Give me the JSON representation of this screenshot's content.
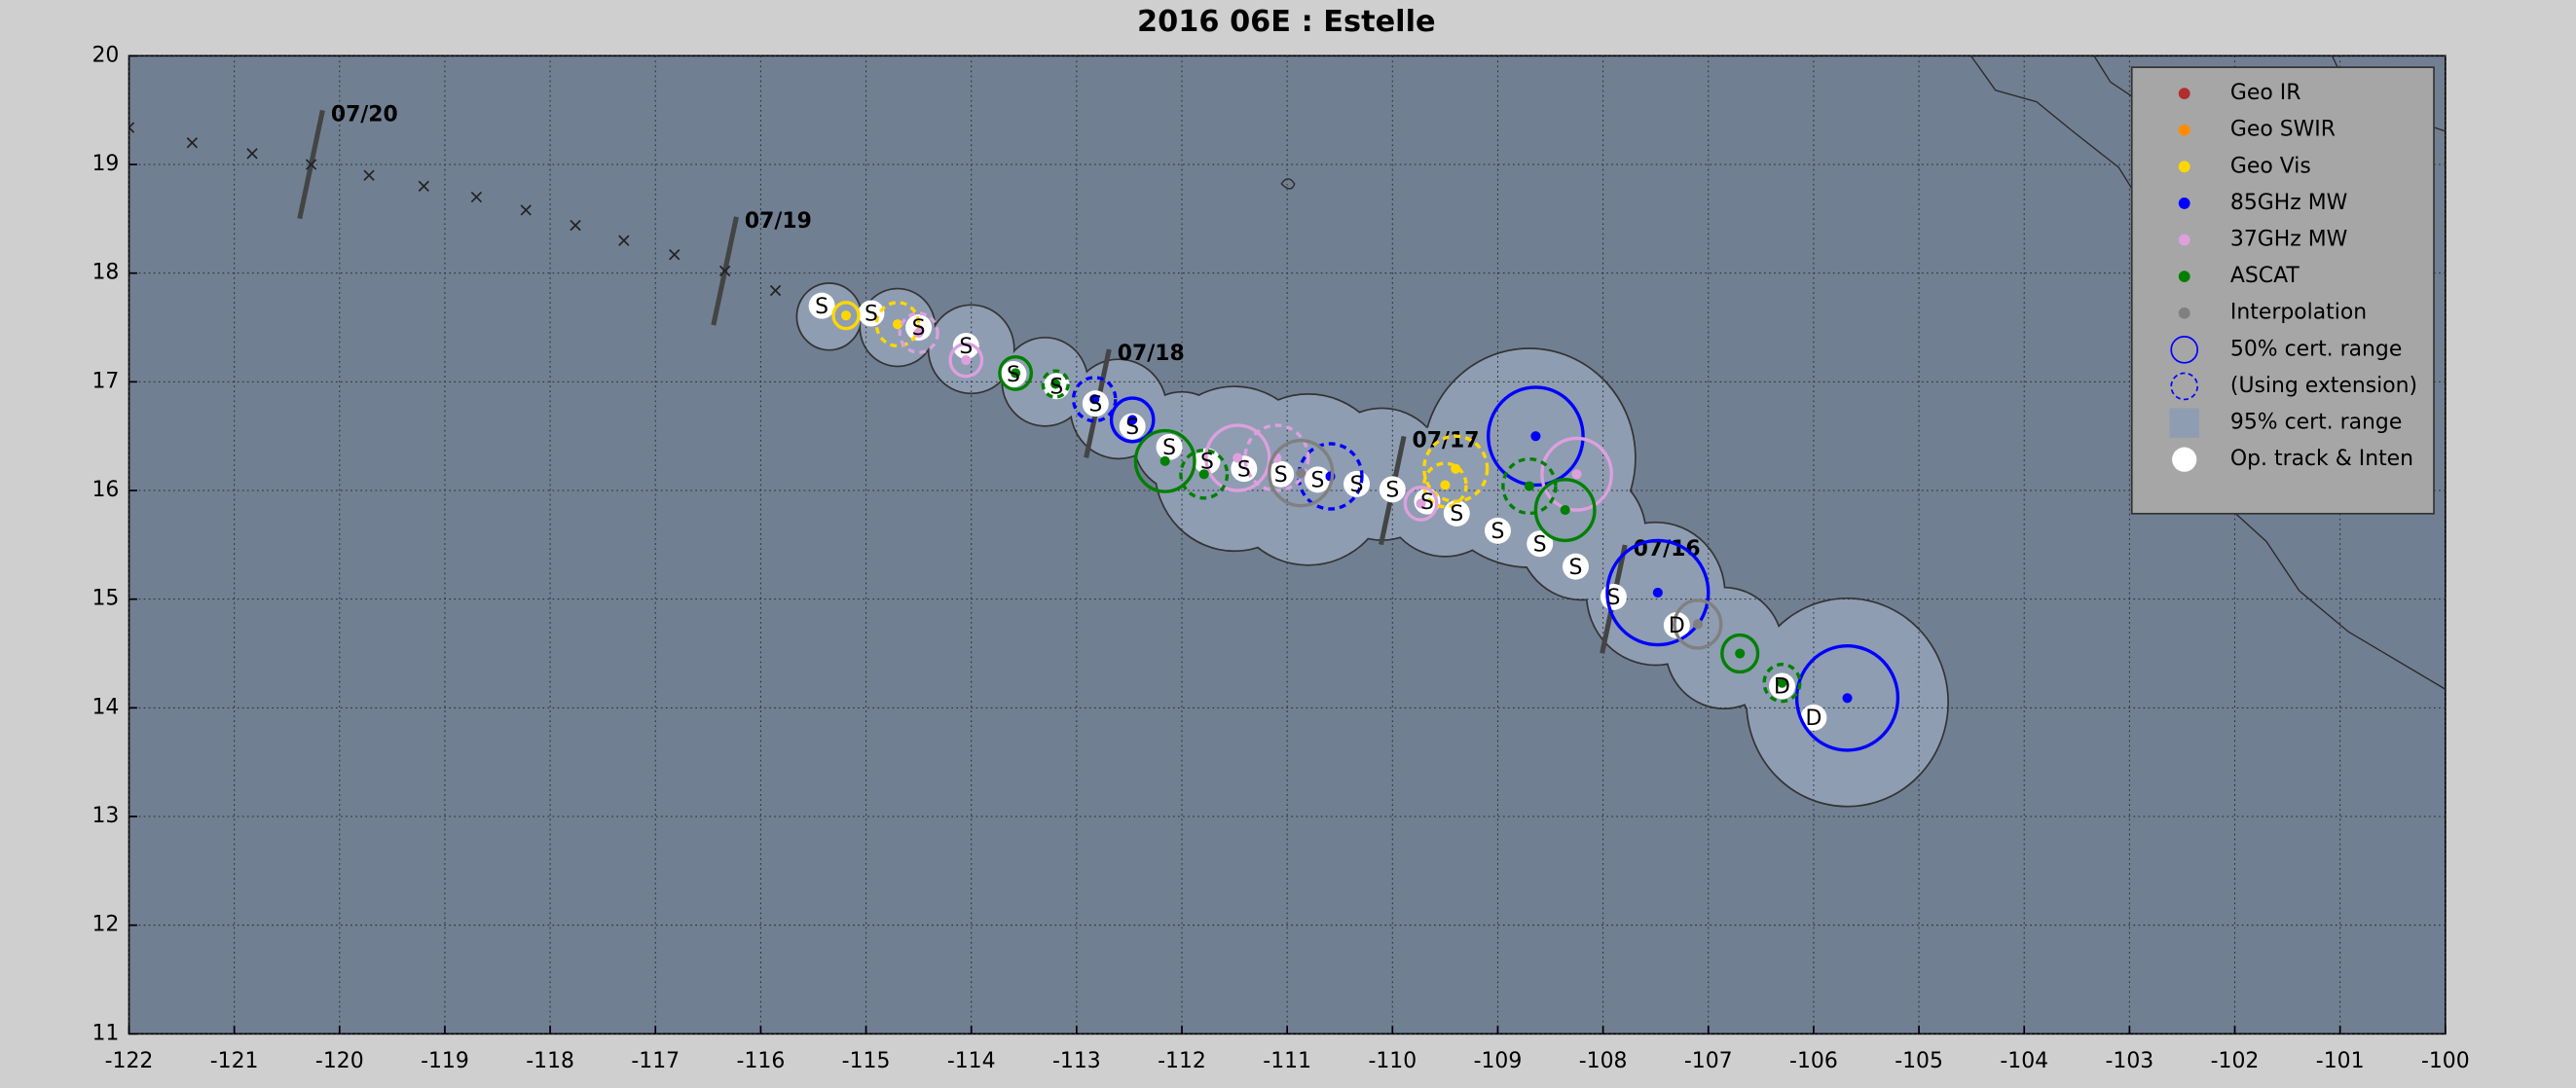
{
  "chart_data": {
    "type": "track",
    "title": "2016  06E :  Estelle",
    "xlim": [
      -122,
      -100
    ],
    "ylim": [
      11,
      20
    ],
    "xticks": [
      -122,
      -121,
      -120,
      -119,
      -118,
      -117,
      -116,
      -115,
      -114,
      -113,
      -112,
      -111,
      -110,
      -109,
      -108,
      -107,
      -106,
      -105,
      -104,
      -103,
      -102,
      -101,
      -100
    ],
    "yticks": [
      11,
      12,
      13,
      14,
      15,
      16,
      17,
      18,
      19,
      20
    ],
    "grid": true,
    "legend_loc": "upper right",
    "series": [
      {
        "name": "Geo IR",
        "color": "#b22d2d",
        "x": [],
        "values": [],
        "radius": [],
        "dashed": []
      },
      {
        "name": "Geo SWIR",
        "color": "#ff8c00",
        "x": [],
        "values": [],
        "radius": [],
        "dashed": []
      },
      {
        "name": "Geo Vis",
        "color": "#ffd700",
        "x": [
          -115.19,
          -114.7,
          -109.4,
          -109.5
        ],
        "values": [
          17.61,
          17.53,
          16.2,
          16.05
        ],
        "radius": [
          0.12,
          0.2,
          0.3,
          0.2
        ],
        "dashed": [
          false,
          true,
          true,
          true
        ]
      },
      {
        "name": "85GHz MW",
        "color": "#0000ff",
        "x": [
          -112.83,
          -112.47,
          -110.59,
          -108.64,
          -107.48,
          -105.68
        ],
        "values": [
          16.84,
          16.65,
          16.13,
          16.5,
          15.06,
          14.09
        ],
        "radius": [
          0.2,
          0.2,
          0.3,
          0.45,
          0.48,
          0.48
        ],
        "dashed": [
          true,
          false,
          true,
          false,
          false,
          false
        ]
      },
      {
        "name": "37GHz MW",
        "color": "#dda0dd",
        "x": [
          -114.5,
          -114.05,
          -111.47,
          -111.1,
          -109.73,
          -108.25
        ],
        "values": [
          17.45,
          17.2,
          16.3,
          16.3,
          15.88,
          16.15
        ],
        "radius": [
          0.18,
          0.15,
          0.3,
          0.3,
          0.15,
          0.33
        ],
        "dashed": [
          true,
          false,
          false,
          true,
          false,
          false
        ]
      },
      {
        "name": "ASCAT",
        "color": "#008000",
        "x": [
          -113.58,
          -113.2,
          -112.16,
          -111.79,
          -108.7,
          -108.36,
          -106.7,
          -106.3
        ],
        "values": [
          17.08,
          16.98,
          16.27,
          16.15,
          16.04,
          15.82,
          14.5,
          14.23
        ],
        "radius": [
          0.15,
          0.12,
          0.28,
          0.22,
          0.25,
          0.28,
          0.17,
          0.17
        ],
        "dashed": [
          false,
          true,
          false,
          true,
          true,
          false,
          false,
          true
        ]
      },
      {
        "name": "Interpolation",
        "color": "#808080",
        "x": [
          -110.87,
          -107.1
        ],
        "values": [
          16.16,
          14.77
        ],
        "radius": [
          0.3,
          0.22
        ],
        "dashed": [
          false,
          false
        ]
      }
    ],
    "cert_range": {
      "name": "50% cert. range",
      "extension_name": "(Using extension)",
      "color": "#0000ff"
    },
    "cert95": {
      "name": "95% cert. range",
      "color": "#8e9db2",
      "x": [
        -115.35,
        -114.7,
        -114.0,
        -113.3,
        -112.6,
        -112.0,
        -111.5,
        -110.8,
        -110.1,
        -109.5,
        -108.7,
        -108.2,
        -107.5,
        -106.85,
        -106.2,
        -105.68
      ],
      "values": [
        17.6,
        17.5,
        17.3,
        17.0,
        16.75,
        16.45,
        16.2,
        16.1,
        16.15,
        16.0,
        16.3,
        15.6,
        15.05,
        14.55,
        14.25,
        14.05
      ],
      "radius": [
        0.3,
        0.35,
        0.4,
        0.4,
        0.45,
        0.45,
        0.75,
        0.78,
        0.6,
        0.6,
        1.0,
        0.6,
        0.65,
        0.55,
        0.5,
        0.95
      ]
    },
    "track": {
      "name": "Op. track & Inten",
      "x": [
        -115.42,
        -114.95,
        -114.5,
        -114.05,
        -113.6,
        -113.19,
        -112.82,
        -112.47,
        -112.12,
        -111.76,
        -111.41,
        -111.06,
        -110.71,
        -110.34,
        -110.0,
        -109.67,
        -109.39,
        -109.0,
        -108.6,
        -108.26,
        -107.9,
        -107.3,
        -106.3,
        -106.0
      ],
      "values": [
        17.7,
        17.63,
        17.5,
        17.33,
        17.07,
        16.96,
        16.8,
        16.59,
        16.4,
        16.27,
        16.2,
        16.15,
        16.1,
        16.06,
        16.01,
        15.9,
        15.79,
        15.63,
        15.51,
        15.3,
        15.02,
        14.76,
        14.2,
        13.91
      ],
      "labels": [
        "S",
        "S",
        "S",
        "S",
        "S",
        "S",
        "S",
        "S",
        "S",
        "S",
        "S",
        "S",
        "S",
        "S",
        "S",
        "S",
        "S",
        "S",
        "S",
        "S",
        "S",
        "D",
        "D",
        "D"
      ]
    },
    "past_track": {
      "x": [
        -122.0,
        -121.4,
        -120.83,
        -120.27,
        -119.72,
        -119.2,
        -118.7,
        -118.23,
        -117.76,
        -117.3,
        -116.82,
        -116.34,
        -115.86
      ],
      "values": [
        19.34,
        19.2,
        19.1,
        19.0,
        18.9,
        18.8,
        18.7,
        18.58,
        18.44,
        18.3,
        18.17,
        18.02,
        17.84
      ]
    },
    "dates": {
      "labels": [
        "07/20",
        "07/19",
        "07/18",
        "07/17",
        "07/16"
      ],
      "x": [
        -120.27,
        -116.34,
        -112.8,
        -110.0,
        -107.9
      ],
      "values": [
        19.0,
        18.02,
        16.8,
        16.0,
        15.0
      ]
    }
  }
}
